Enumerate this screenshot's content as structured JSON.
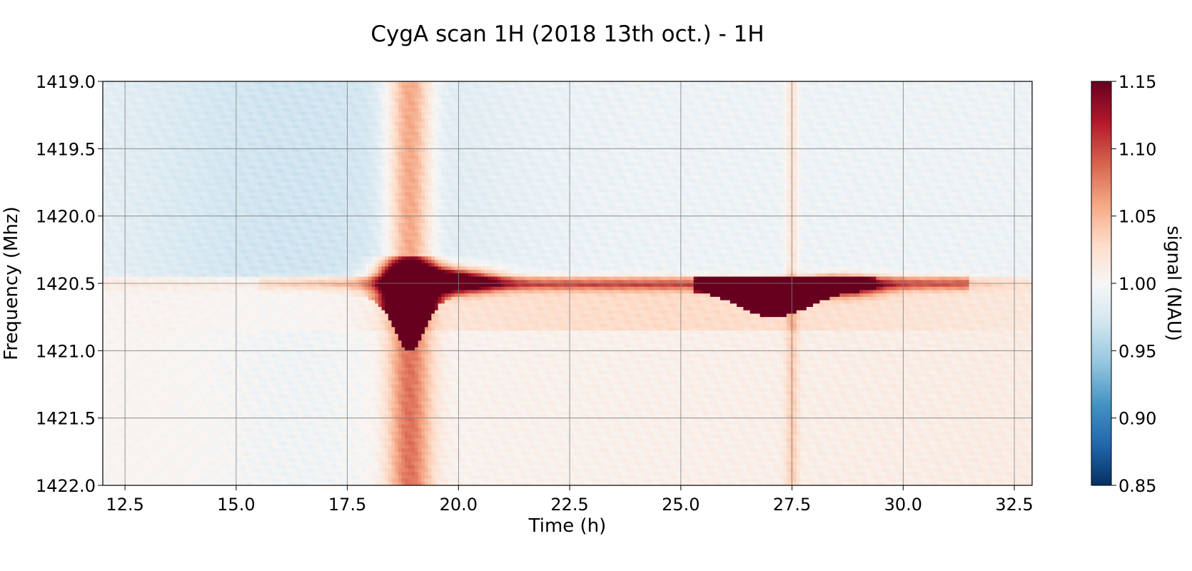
{
  "chart_data": {
    "type": "heatmap",
    "title": "CygA scan 1H (2018 13th oct.) - 1H",
    "xlabel": "Time (h)",
    "ylabel": "Frequency (Mhz)",
    "xlim": [
      12.0,
      32.9
    ],
    "ylim": [
      1419.0,
      1422.0
    ],
    "y_inverted": true,
    "xticks": [
      "12.5",
      "15.0",
      "17.5",
      "20.0",
      "22.5",
      "25.0",
      "27.5",
      "30.0",
      "32.5"
    ],
    "yticks": [
      "1419.0",
      "1419.5",
      "1420.0",
      "1420.5",
      "1421.0",
      "1421.5",
      "1422.0"
    ],
    "grid": true,
    "colormap": "RdBu_r",
    "colorbar": {
      "label": "signal (NAU)",
      "range": [
        0.85,
        1.15
      ],
      "ticks": [
        "0.85",
        "0.90",
        "0.95",
        "1.00",
        "1.05",
        "1.10",
        "1.15"
      ]
    },
    "features": {
      "transit_1": {
        "time": 18.9,
        "width_h": 0.9,
        "signal": 1.08
      },
      "transit_2": {
        "time": 27.5,
        "width_h": 0.25,
        "signal": 1.03
      },
      "hi_line": {
        "frequency": 1420.5,
        "signal": 1.15
      },
      "hi_peak_1": {
        "time": 18.9,
        "freq_range": [
          1420.3,
          1420.95
        ],
        "signal": 1.15
      },
      "hi_peak_2": {
        "time": 27.1,
        "freq_range": [
          1420.45,
          1420.75
        ],
        "signal": 1.15
      }
    }
  }
}
